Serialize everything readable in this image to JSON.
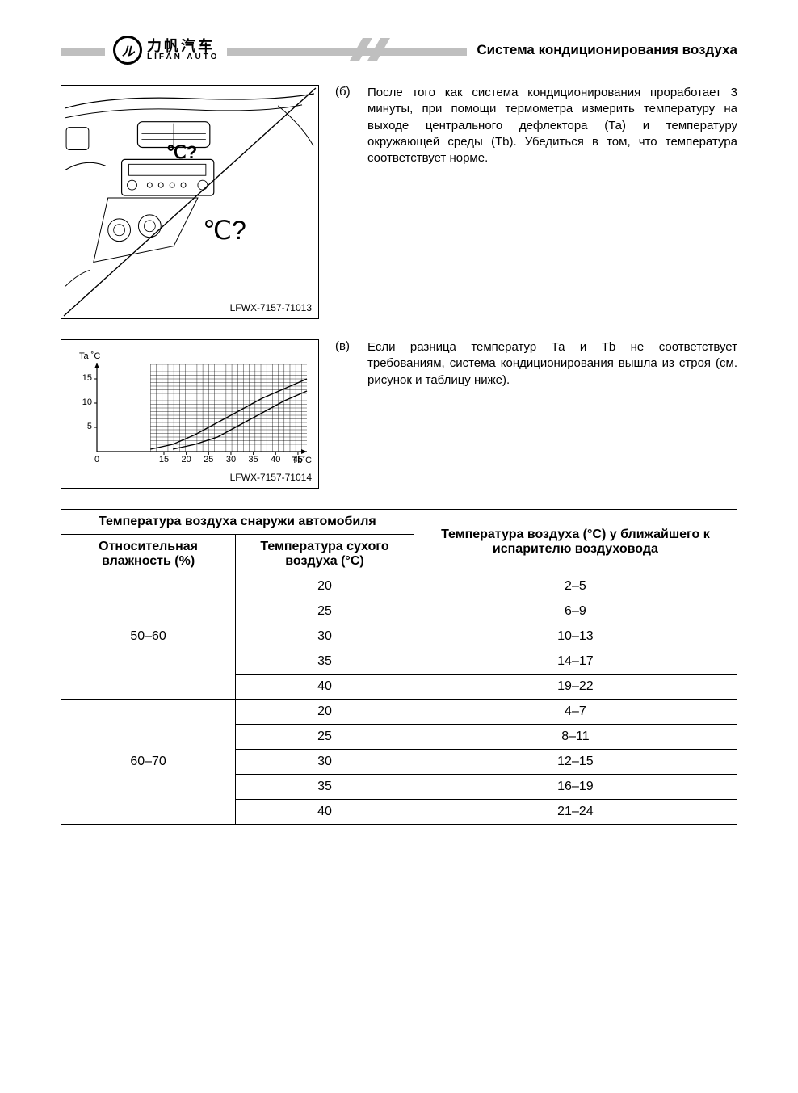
{
  "header": {
    "logo_cn": "力帆汽车",
    "logo_en": "LIFAN AUTO",
    "logo_mark": "ル",
    "title": "Система кондиционирования воздуха"
  },
  "step_b": {
    "bullet": "(б)",
    "text": "После того как система кондиционирования проработает 3 минуты, при помощи термометра измерить температуру на выходе центрального дефлектора (Та) и температуру окружающей среды (Тb). Убедиться в том, что температура соответствует норме.",
    "fig_code": "LFWX-7157-71013",
    "fig_label1": "℃?",
    "fig_label2": "℃?"
  },
  "step_v": {
    "bullet": "(в)",
    "text": "Если разница температур Та и Тb не соответствует требованиям, система кондиционирования вышла из строя (см. рисунок и таблицу ниже).",
    "fig_code": "LFWX-7157-71014"
  },
  "chart": {
    "type": "line",
    "ylabel": "Ta ˚С",
    "xlabel": "Тb˚С",
    "y_ticks": [
      5,
      10,
      15
    ],
    "x_ticks": [
      0,
      15,
      20,
      25,
      30,
      35,
      40,
      45
    ],
    "xlim": [
      0,
      47
    ],
    "ylim": [
      0,
      18
    ],
    "grid_color": "#000000",
    "bg_color": "#ffffff",
    "series": [
      {
        "name": "upper",
        "points": [
          [
            12,
            0.5
          ],
          [
            17,
            1.5
          ],
          [
            22,
            3.5
          ],
          [
            27,
            6
          ],
          [
            32,
            8.5
          ],
          [
            37,
            11
          ],
          [
            42,
            13
          ],
          [
            47,
            15
          ]
        ]
      },
      {
        "name": "lower",
        "points": [
          [
            17,
            0.5
          ],
          [
            22,
            1.5
          ],
          [
            27,
            3
          ],
          [
            32,
            5.5
          ],
          [
            37,
            8
          ],
          [
            42,
            10.5
          ],
          [
            47,
            12.5
          ]
        ]
      }
    ],
    "line_color": "#000000",
    "line_width": 1.4
  },
  "table": {
    "header_outer": "Температура воздуха снаружи автомобиля",
    "header_hum": "Относительная влажность (%)",
    "header_dry": "Температура сухого воздуха (°С)",
    "header_evap": "Температура воздуха (°С) у ближайшего к испарителю воздуховода",
    "groups": [
      {
        "humidity": "50–60",
        "rows": [
          {
            "dry": "20",
            "evap": "2–5"
          },
          {
            "dry": "25",
            "evap": "6–9"
          },
          {
            "dry": "30",
            "evap": "10–13"
          },
          {
            "dry": "35",
            "evap": "14–17"
          },
          {
            "dry": "40",
            "evap": "19–22"
          }
        ]
      },
      {
        "humidity": "60–70",
        "rows": [
          {
            "dry": "20",
            "evap": "4–7"
          },
          {
            "dry": "25",
            "evap": "8–11"
          },
          {
            "dry": "30",
            "evap": "12–15"
          },
          {
            "dry": "35",
            "evap": "16–19"
          },
          {
            "dry": "40",
            "evap": "21–24"
          }
        ]
      }
    ]
  }
}
